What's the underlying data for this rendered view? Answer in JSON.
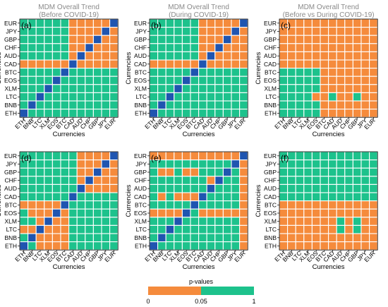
{
  "colors": {
    "low": "#F58B3C",
    "high": "#1DC28C",
    "diag": "#1F55B0",
    "grid": "#ffffff",
    "title": "#8a8a8a"
  },
  "legend": {
    "title": "p-values",
    "ticks": [
      "0",
      "0.05",
      "1"
    ]
  },
  "chart_data": {
    "type": "heatmap",
    "currencies_y": [
      "EUR",
      "JPY",
      "GBP",
      "CHF",
      "AUD",
      "CAD",
      "BTC",
      "EOS",
      "XLM",
      "LTC",
      "BNB",
      "ETH"
    ],
    "currencies_x": [
      "ETH",
      "BNB",
      "LTC",
      "XLM",
      "EOS",
      "BTC",
      "CAD",
      "AUD",
      "CHF",
      "GBP",
      "JPY",
      "EUR"
    ],
    "xlabel": "Currencies",
    "ylabel": "Currencies",
    "value_legend": "0 = p-value in [0, 0.05] (orange), 1 = p-value in [0.05, 1] (green), 2 = diagonal",
    "panels": [
      {
        "label": "(a)",
        "title_line1": "MDM Overall Trend",
        "title_line2": "(Before COVID-19)",
        "rows": [
          [
            1,
            1,
            1,
            1,
            1,
            1,
            0,
            0,
            0,
            0,
            0,
            2
          ],
          [
            1,
            1,
            1,
            1,
            1,
            1,
            0,
            0,
            0,
            0,
            2,
            0
          ],
          [
            1,
            1,
            1,
            1,
            1,
            1,
            0,
            0,
            0,
            2,
            0,
            0
          ],
          [
            1,
            1,
            1,
            1,
            1,
            1,
            0,
            0,
            2,
            0,
            0,
            0
          ],
          [
            1,
            1,
            1,
            1,
            1,
            1,
            0,
            2,
            0,
            0,
            0,
            0
          ],
          [
            0,
            0,
            0,
            0,
            0,
            0,
            2,
            0,
            0,
            0,
            0,
            0
          ],
          [
            1,
            1,
            1,
            1,
            1,
            2,
            1,
            1,
            1,
            1,
            1,
            1
          ],
          [
            1,
            1,
            1,
            1,
            2,
            1,
            1,
            1,
            1,
            1,
            1,
            1
          ],
          [
            1,
            1,
            1,
            2,
            1,
            1,
            1,
            1,
            1,
            1,
            1,
            1
          ],
          [
            1,
            1,
            2,
            1,
            1,
            1,
            1,
            1,
            1,
            1,
            1,
            1
          ],
          [
            1,
            2,
            1,
            1,
            1,
            1,
            1,
            1,
            1,
            1,
            1,
            1
          ],
          [
            2,
            1,
            1,
            1,
            1,
            1,
            1,
            1,
            1,
            1,
            1,
            1
          ]
        ]
      },
      {
        "label": "(b)",
        "title_line1": "MDM Overall Trend",
        "title_line2": "(During COVID-19)",
        "rows": [
          [
            1,
            1,
            1,
            1,
            1,
            1,
            0,
            0,
            0,
            0,
            0,
            2
          ],
          [
            1,
            1,
            1,
            1,
            1,
            1,
            0,
            0,
            0,
            0,
            2,
            0
          ],
          [
            1,
            1,
            1,
            1,
            1,
            1,
            0,
            0,
            0,
            2,
            0,
            0
          ],
          [
            1,
            1,
            1,
            1,
            1,
            1,
            0,
            0,
            2,
            0,
            0,
            0
          ],
          [
            1,
            1,
            1,
            1,
            1,
            1,
            0,
            2,
            0,
            0,
            0,
            0
          ],
          [
            0,
            0,
            0,
            0,
            0,
            0,
            2,
            0,
            0,
            0,
            0,
            0
          ],
          [
            1,
            1,
            1,
            1,
            1,
            2,
            1,
            1,
            1,
            1,
            1,
            1
          ],
          [
            1,
            1,
            1,
            1,
            2,
            1,
            1,
            1,
            1,
            1,
            1,
            1
          ],
          [
            1,
            1,
            1,
            2,
            1,
            1,
            1,
            1,
            1,
            1,
            1,
            1
          ],
          [
            1,
            1,
            2,
            1,
            1,
            1,
            1,
            1,
            1,
            1,
            1,
            1
          ],
          [
            1,
            2,
            1,
            1,
            1,
            1,
            1,
            1,
            1,
            1,
            1,
            1
          ],
          [
            2,
            1,
            1,
            1,
            1,
            1,
            1,
            1,
            1,
            1,
            1,
            1
          ]
        ]
      },
      {
        "label": "(c)",
        "title_line1": "MDM Overall Trend",
        "title_line2": "(Before vs During COVID-19)",
        "rows": [
          [
            0,
            0,
            0,
            0,
            0,
            0,
            0,
            0,
            0,
            0,
            0,
            0
          ],
          [
            0,
            0,
            0,
            0,
            0,
            0,
            0,
            0,
            0,
            0,
            0,
            0
          ],
          [
            0,
            0,
            0,
            0,
            0,
            0,
            0,
            0,
            0,
            0,
            0,
            0
          ],
          [
            0,
            0,
            0,
            0,
            0,
            0,
            0,
            0,
            0,
            0,
            0,
            0
          ],
          [
            0,
            0,
            0,
            0,
            0,
            0,
            0,
            0,
            0,
            0,
            0,
            0
          ],
          [
            0,
            0,
            0,
            0,
            0,
            0,
            0,
            0,
            0,
            0,
            0,
            0
          ],
          [
            1,
            1,
            1,
            1,
            1,
            0,
            0,
            0,
            0,
            0,
            0,
            0
          ],
          [
            1,
            1,
            1,
            1,
            1,
            0,
            0,
            0,
            0,
            0,
            0,
            0
          ],
          [
            1,
            1,
            1,
            1,
            1,
            0,
            0,
            0,
            0,
            0,
            0,
            0
          ],
          [
            1,
            1,
            1,
            1,
            0,
            0,
            1,
            0,
            0,
            1,
            0,
            0
          ],
          [
            1,
            1,
            1,
            1,
            1,
            0,
            0,
            0,
            0,
            0,
            0,
            0
          ],
          [
            1,
            1,
            1,
            1,
            1,
            0,
            0,
            0,
            0,
            0,
            0,
            0
          ]
        ]
      },
      {
        "label": "(d)",
        "title_line1": "",
        "title_line2": "",
        "rows": [
          [
            1,
            1,
            1,
            1,
            1,
            1,
            1,
            0,
            0,
            0,
            0,
            2
          ],
          [
            1,
            1,
            1,
            1,
            1,
            1,
            1,
            0,
            0,
            0,
            2,
            0
          ],
          [
            1,
            1,
            1,
            1,
            1,
            1,
            1,
            0,
            0,
            2,
            0,
            0
          ],
          [
            1,
            1,
            1,
            1,
            1,
            1,
            1,
            0,
            2,
            0,
            0,
            0
          ],
          [
            1,
            1,
            1,
            1,
            1,
            1,
            1,
            2,
            0,
            0,
            0,
            0
          ],
          [
            1,
            1,
            1,
            1,
            1,
            1,
            2,
            1,
            1,
            1,
            1,
            1
          ],
          [
            0,
            0,
            0,
            0,
            0,
            2,
            1,
            1,
            1,
            1,
            1,
            1
          ],
          [
            1,
            0,
            0,
            0,
            2,
            0,
            1,
            1,
            1,
            1,
            1,
            1
          ],
          [
            1,
            1,
            0,
            2,
            0,
            0,
            1,
            1,
            1,
            1,
            1,
            1
          ],
          [
            0,
            0,
            2,
            0,
            0,
            0,
            1,
            1,
            1,
            1,
            1,
            1
          ],
          [
            1,
            2,
            0,
            0,
            0,
            0,
            1,
            1,
            1,
            1,
            1,
            1
          ],
          [
            2,
            1,
            0,
            0,
            0,
            0,
            1,
            1,
            1,
            1,
            1,
            1
          ]
        ]
      },
      {
        "label": "(e)",
        "title_line1": "",
        "title_line2": "",
        "rows": [
          [
            0,
            0,
            0,
            0,
            0,
            0,
            0,
            0,
            0,
            0,
            0,
            2
          ],
          [
            1,
            1,
            1,
            1,
            1,
            1,
            1,
            1,
            1,
            1,
            2,
            0
          ],
          [
            1,
            0,
            0,
            1,
            0,
            0,
            1,
            1,
            1,
            2,
            1,
            0
          ],
          [
            1,
            1,
            1,
            1,
            1,
            1,
            1,
            0,
            2,
            1,
            1,
            0
          ],
          [
            1,
            1,
            1,
            1,
            1,
            1,
            1,
            2,
            1,
            1,
            1,
            0
          ],
          [
            1,
            0,
            1,
            0,
            0,
            0,
            2,
            1,
            1,
            1,
            1,
            0
          ],
          [
            1,
            1,
            1,
            1,
            1,
            2,
            1,
            1,
            1,
            1,
            1,
            0
          ],
          [
            0,
            0,
            0,
            0,
            2,
            1,
            0,
            0,
            0,
            0,
            0,
            0
          ],
          [
            1,
            1,
            1,
            2,
            1,
            1,
            1,
            1,
            1,
            1,
            1,
            0
          ],
          [
            1,
            1,
            2,
            1,
            1,
            1,
            1,
            1,
            1,
            1,
            1,
            0
          ],
          [
            1,
            2,
            1,
            1,
            1,
            1,
            1,
            1,
            1,
            1,
            1,
            0
          ],
          [
            2,
            1,
            1,
            1,
            1,
            1,
            1,
            1,
            1,
            1,
            1,
            0
          ]
        ]
      },
      {
        "label": "(f)",
        "title_line1": "",
        "title_line2": "",
        "rows": [
          [
            1,
            1,
            1,
            1,
            1,
            1,
            1,
            1,
            1,
            1,
            1,
            1
          ],
          [
            1,
            1,
            1,
            1,
            1,
            1,
            1,
            1,
            1,
            1,
            1,
            1
          ],
          [
            1,
            1,
            1,
            1,
            1,
            1,
            1,
            1,
            1,
            1,
            1,
            1
          ],
          [
            1,
            1,
            1,
            1,
            1,
            1,
            1,
            1,
            1,
            1,
            1,
            1
          ],
          [
            1,
            1,
            1,
            1,
            1,
            1,
            1,
            1,
            1,
            1,
            1,
            1
          ],
          [
            1,
            1,
            1,
            1,
            1,
            1,
            1,
            1,
            1,
            1,
            1,
            1
          ],
          [
            0,
            0,
            0,
            0,
            0,
            0,
            0,
            0,
            0,
            0,
            0,
            0
          ],
          [
            0,
            0,
            0,
            0,
            0,
            0,
            0,
            0,
            0,
            0,
            0,
            0
          ],
          [
            0,
            0,
            0,
            0,
            0,
            0,
            0,
            1,
            0,
            1,
            0,
            0
          ],
          [
            0,
            0,
            0,
            0,
            0,
            0,
            0,
            1,
            0,
            1,
            0,
            0
          ],
          [
            0,
            0,
            0,
            0,
            0,
            0,
            0,
            0,
            0,
            0,
            0,
            0
          ],
          [
            0,
            0,
            0,
            0,
            0,
            0,
            0,
            0,
            0,
            0,
            0,
            0
          ]
        ]
      }
    ]
  }
}
